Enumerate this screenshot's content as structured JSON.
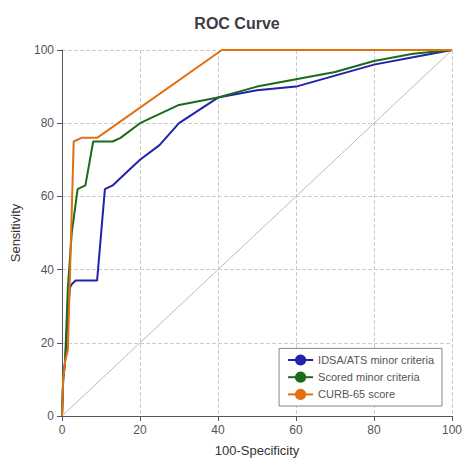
{
  "chart_data": {
    "type": "line",
    "title": "ROC Curve",
    "xlabel": "100-Specificity",
    "ylabel": "Sensitivity",
    "xlim": [
      0,
      100
    ],
    "ylim": [
      0,
      100
    ],
    "xticks": [
      0,
      20,
      40,
      60,
      80,
      100
    ],
    "yticks": [
      0,
      20,
      40,
      60,
      80,
      100
    ],
    "grid": true,
    "legend": "lower right",
    "reference_line": {
      "color": "#bbbbbb",
      "x": [
        0,
        100
      ],
      "values": [
        0,
        100
      ]
    },
    "series": [
      {
        "name": "IDSA/ATS minor criteria",
        "color": "#2222aa",
        "x": [
          0,
          0.3,
          0.8,
          1.2,
          2.0,
          2.5,
          3.5,
          5,
          7,
          9,
          11,
          13,
          15,
          20,
          25,
          30,
          40,
          50,
          60,
          70,
          80,
          90,
          100
        ],
        "values": [
          0,
          10,
          15,
          22,
          35,
          36,
          37,
          37,
          37,
          37,
          62,
          63,
          65,
          70,
          74,
          80,
          87,
          89,
          90,
          93,
          96,
          98,
          100
        ]
      },
      {
        "name": "Scored minor criteria",
        "color": "#1a6b1a",
        "x": [
          0,
          0.3,
          0.8,
          1.5,
          2.5,
          4,
          6,
          8,
          10,
          13,
          15,
          20,
          30,
          40,
          50,
          60,
          70,
          80,
          90,
          100
        ],
        "values": [
          0,
          10,
          15,
          35,
          50,
          62,
          63,
          75,
          75,
          75,
          76,
          80,
          85,
          87,
          90,
          92,
          94,
          97,
          99,
          100
        ]
      },
      {
        "name": "CURB-65 score",
        "color": "#e07010",
        "x": [
          0,
          0.3,
          0.8,
          1.5,
          3,
          5,
          7,
          9,
          41,
          60,
          80,
          100
        ],
        "values": [
          0,
          10,
          15,
          18,
          75,
          76,
          76,
          76,
          100,
          100,
          100,
          100
        ]
      }
    ]
  }
}
